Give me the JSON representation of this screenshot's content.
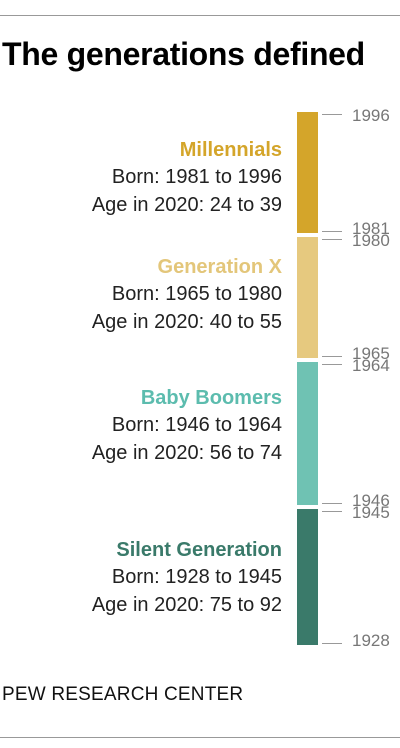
{
  "title": "The generations defined",
  "source": "PEW RESEARCH CENTER",
  "chart_data": {
    "type": "bar",
    "orientation": "vertical-stacked-timeline",
    "title": "The generations defined",
    "ylim": [
      1928,
      1996
    ],
    "series": [
      {
        "name": "Millennials",
        "born_label": "Born: 1981 to 1996",
        "age_label": "Age in 2020: 24 to 39",
        "start": 1981,
        "end": 1996,
        "color": "#d4a52a",
        "text_color": "#d4a52a"
      },
      {
        "name": "Generation X",
        "born_label": "Born: 1965 to 1980",
        "age_label": "Age in 2020: 40 to 55",
        "start": 1965,
        "end": 1980,
        "color": "#e6c97f",
        "text_color": "#e3c67a"
      },
      {
        "name": "Baby Boomers",
        "born_label": "Born: 1946 to 1964",
        "age_label": "Age in 2020: 56 to 74",
        "start": 1946,
        "end": 1964,
        "color": "#6fc2b3",
        "text_color": "#5cbcae"
      },
      {
        "name": "Silent Generation",
        "born_label": "Born: 1928 to 1945",
        "age_label": "Age in 2020: 75 to 92",
        "start": 1928,
        "end": 1945,
        "color": "#3a7a6a",
        "text_color": "#3a7a6a"
      }
    ],
    "tick_labels": [
      "1996",
      "1981",
      "1980",
      "1965",
      "1964",
      "1946",
      "1945",
      "1928"
    ]
  }
}
